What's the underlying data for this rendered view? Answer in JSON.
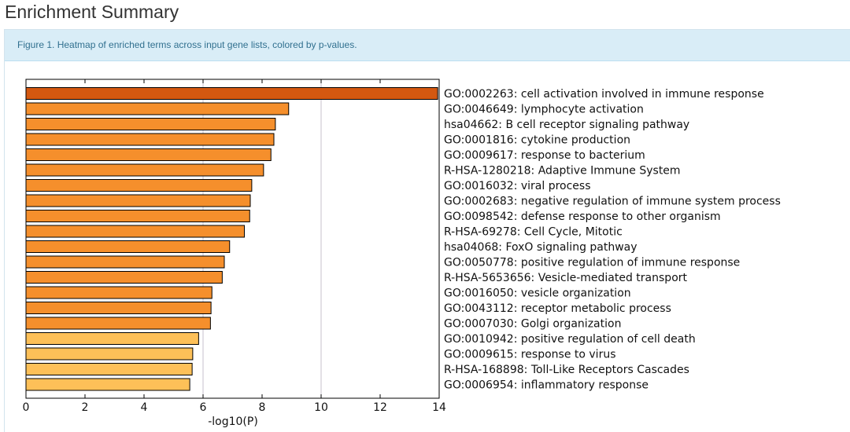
{
  "page": {
    "title": "Enrichment Summary",
    "caption": "Figure 1. Heatmap of enriched terms across input gene lists, colored by p-values."
  },
  "chart_data": {
    "type": "bar",
    "orientation": "horizontal",
    "xlabel": "-log10(P)",
    "xlim": [
      0,
      14
    ],
    "xticks": [
      "0",
      "2",
      "4",
      "6",
      "8",
      "10",
      "12",
      "14"
    ],
    "grid": "vertical line at 6 and 10",
    "categories": [
      "GO:0002263: cell activation involved in immune response",
      "GO:0046649: lymphocyte activation",
      "hsa04662: B cell receptor signaling pathway",
      "GO:0001816: cytokine production",
      "GO:0009617: response to bacterium",
      "R-HSA-1280218: Adaptive Immune System",
      "GO:0016032: viral process",
      "GO:0002683: negative regulation of immune system process",
      "GO:0098542: defense response to other organism",
      "R-HSA-69278: Cell Cycle, Mitotic",
      "hsa04068: FoxO signaling pathway",
      "GO:0050778: positive regulation of immune response",
      "R-HSA-5653656: Vesicle-mediated transport",
      "GO:0016050: vesicle organization",
      "GO:0043112: receptor metabolic process",
      "GO:0007030: Golgi organization",
      "GO:0010942: positive regulation of cell death",
      "GO:0009615: response to virus",
      "R-HSA-168898: Toll-Like Receptors Cascades",
      "GO:0006954: inflammatory response"
    ],
    "values": [
      13.95,
      8.9,
      8.45,
      8.4,
      8.3,
      8.05,
      7.65,
      7.6,
      7.58,
      7.4,
      6.9,
      6.72,
      6.65,
      6.3,
      6.27,
      6.25,
      5.85,
      5.65,
      5.63,
      5.55
    ],
    "colors": {
      "darkest": "#d45810",
      "dark": "#f58f2c",
      "light": "#fdc058",
      "axis": "#000000",
      "grid": "#c7c0cc"
    },
    "color_levels": [
      "darkest",
      "dark",
      "dark",
      "dark",
      "dark",
      "dark",
      "dark",
      "dark",
      "dark",
      "dark",
      "dark",
      "dark",
      "dark",
      "dark",
      "dark",
      "dark",
      "light",
      "light",
      "light",
      "light"
    ]
  }
}
